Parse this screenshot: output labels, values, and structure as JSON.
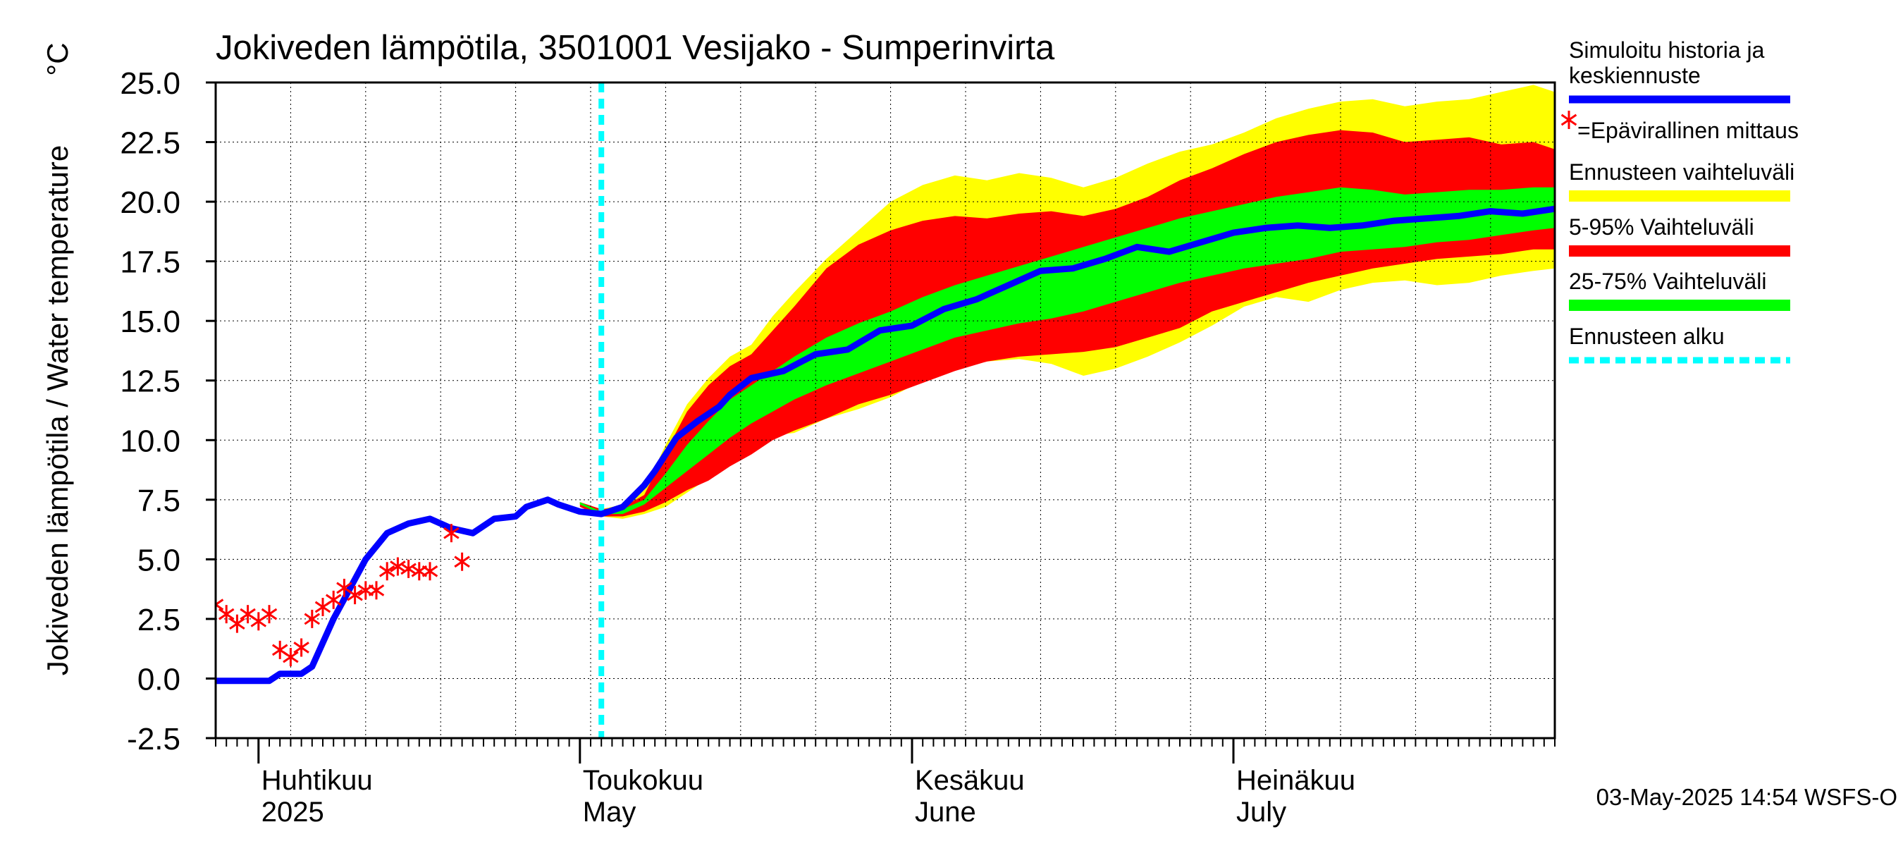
{
  "chart_data": {
    "type": "area",
    "title": "Jokiveden lämpötila, 3501001 Vesijako - Sumperinvirta",
    "ylabel": "Jokiveden lämpötila / Water temperature",
    "yunit": "°C",
    "ylim": [
      -2.5,
      25.0
    ],
    "yticks": [
      "25.0",
      "22.5",
      "20.0",
      "17.5",
      "15.0",
      "12.5",
      "10.0",
      "7.5",
      "5.0",
      "2.5",
      "0.0",
      "-2.5"
    ],
    "xlim": [
      "2025-03-28",
      "2025-07-31"
    ],
    "month_labels": [
      {
        "date": "2025-04-01",
        "fi": "Huhtikuu",
        "en": "2025"
      },
      {
        "date": "2025-05-01",
        "fi": "Toukokuu",
        "en": "May"
      },
      {
        "date": "2025-06-01",
        "fi": "Kesäkuu",
        "en": "June"
      },
      {
        "date": "2025-07-01",
        "fi": "Heinäkuu",
        "en": "July"
      }
    ],
    "forecast_start": "2025-05-03",
    "timestamp": "03-May-2025 14:54 WSFS-O",
    "legend_placement": "right",
    "legend": [
      {
        "label": "Simuloitu historia ja keskiennuste",
        "color": "#0000ff",
        "kind": "line"
      },
      {
        "label": "=Epävirallinen mittaus",
        "color": "#ff0000",
        "kind": "star"
      },
      {
        "label": "Ennusteen vaihteluväli",
        "color": "#ffff00",
        "kind": "band"
      },
      {
        "label": "5-95% Vaihteluväli",
        "color": "#ff0000",
        "kind": "band"
      },
      {
        "label": "25-75% Vaihteluväli",
        "color": "#00ff00",
        "kind": "band"
      },
      {
        "label": "Ennusteen alku",
        "color": "#00ffff",
        "kind": "dash"
      }
    ],
    "colors": {
      "mean": "#0000ff",
      "obs": "#ff0000",
      "range_full": "#ffff00",
      "range_5_95": "#ff0000",
      "range_25_75": "#00ff00",
      "forecast_start": "#00ffff",
      "grid": "#000000"
    },
    "series": [
      {
        "name": "Simuloitu historia ja keskiennuste",
        "x": [
          "2025-03-28",
          "2025-04-02",
          "2025-04-03",
          "2025-04-05",
          "2025-04-06",
          "2025-04-08",
          "2025-04-11",
          "2025-04-13",
          "2025-04-15",
          "2025-04-17",
          "2025-04-19",
          "2025-04-21",
          "2025-04-23",
          "2025-04-25",
          "2025-04-26",
          "2025-04-28",
          "2025-04-29",
          "2025-05-01",
          "2025-05-03",
          "2025-05-05",
          "2025-05-07",
          "2025-05-08",
          "2025-05-09",
          "2025-05-10",
          "2025-05-12",
          "2025-05-14",
          "2025-05-15",
          "2025-05-17",
          "2025-05-20",
          "2025-05-23",
          "2025-05-26",
          "2025-05-29",
          "2025-06-01",
          "2025-06-04",
          "2025-06-07",
          "2025-06-10",
          "2025-06-13",
          "2025-06-16",
          "2025-06-19",
          "2025-06-22",
          "2025-06-25",
          "2025-06-28",
          "2025-07-01",
          "2025-07-04",
          "2025-07-07",
          "2025-07-10",
          "2025-07-13",
          "2025-07-16",
          "2025-07-19",
          "2025-07-22",
          "2025-07-25",
          "2025-07-28",
          "2025-07-31"
        ],
        "values": [
          -0.1,
          -0.1,
          0.2,
          0.2,
          0.5,
          2.5,
          5.0,
          6.1,
          6.5,
          6.7,
          6.3,
          6.1,
          6.7,
          6.8,
          7.2,
          7.5,
          7.3,
          7.0,
          6.9,
          7.2,
          8.1,
          8.7,
          9.4,
          10.1,
          10.8,
          11.4,
          11.9,
          12.6,
          12.9,
          13.6,
          13.8,
          14.6,
          14.8,
          15.5,
          15.9,
          16.5,
          17.1,
          17.2,
          17.6,
          18.1,
          17.9,
          18.3,
          18.7,
          18.9,
          19.0,
          18.9,
          19.0,
          19.2,
          19.3,
          19.4,
          19.6,
          19.5,
          19.7
        ]
      },
      {
        "name": "=Epävirallinen mittaus",
        "x": [
          "2025-03-28",
          "2025-03-29",
          "2025-03-30",
          "2025-03-31",
          "2025-04-01",
          "2025-04-02",
          "2025-04-03",
          "2025-04-04",
          "2025-04-05",
          "2025-04-06",
          "2025-04-07",
          "2025-04-08",
          "2025-04-09",
          "2025-04-10",
          "2025-04-11",
          "2025-04-12",
          "2025-04-13",
          "2025-04-14",
          "2025-04-15",
          "2025-04-16",
          "2025-04-17",
          "2025-04-19",
          "2025-04-20"
        ],
        "values": [
          3.1,
          2.7,
          2.3,
          2.7,
          2.4,
          2.7,
          1.2,
          0.9,
          1.3,
          2.5,
          3.0,
          3.3,
          3.8,
          3.5,
          3.7,
          3.7,
          4.5,
          4.7,
          4.6,
          4.5,
          4.5,
          6.1,
          4.9
        ]
      }
    ],
    "bands": [
      {
        "name": "Ennusteen vaihteluväli",
        "x": [
          "2025-05-01",
          "2025-05-03",
          "2025-05-05",
          "2025-05-07",
          "2025-05-09",
          "2025-05-11",
          "2025-05-13",
          "2025-05-15",
          "2025-05-17",
          "2025-05-19",
          "2025-05-21",
          "2025-05-24",
          "2025-05-27",
          "2025-05-30",
          "2025-06-02",
          "2025-06-05",
          "2025-06-08",
          "2025-06-11",
          "2025-06-14",
          "2025-06-17",
          "2025-06-20",
          "2025-06-23",
          "2025-06-26",
          "2025-06-29",
          "2025-07-02",
          "2025-07-05",
          "2025-07-08",
          "2025-07-11",
          "2025-07-14",
          "2025-07-17",
          "2025-07-20",
          "2025-07-23",
          "2025-07-26",
          "2025-07-29",
          "2025-07-31"
        ],
        "low": [
          7.3,
          6.8,
          6.7,
          6.9,
          7.2,
          7.8,
          8.4,
          9.1,
          9.8,
          10.2,
          10.3,
          10.9,
          11.3,
          11.8,
          12.5,
          13.0,
          13.3,
          13.4,
          13.2,
          12.7,
          13.0,
          13.5,
          14.1,
          14.8,
          15.6,
          16.0,
          15.8,
          16.3,
          16.6,
          16.7,
          16.5,
          16.6,
          16.9,
          17.1,
          17.2
        ],
        "high": [
          7.4,
          7.1,
          7.3,
          7.9,
          9.8,
          11.5,
          12.6,
          13.5,
          14.0,
          15.2,
          16.2,
          17.6,
          18.8,
          20.0,
          20.7,
          21.1,
          20.9,
          21.2,
          21.0,
          20.6,
          21.0,
          21.6,
          22.1,
          22.4,
          22.9,
          23.5,
          23.9,
          24.2,
          24.3,
          24.0,
          24.2,
          24.3,
          24.6,
          24.9,
          24.6
        ]
      },
      {
        "name": "5-95% Vaihteluväli",
        "x": [
          "2025-05-01",
          "2025-05-03",
          "2025-05-05",
          "2025-05-07",
          "2025-05-09",
          "2025-05-11",
          "2025-05-13",
          "2025-05-15",
          "2025-05-17",
          "2025-05-19",
          "2025-05-21",
          "2025-05-24",
          "2025-05-27",
          "2025-05-30",
          "2025-06-02",
          "2025-06-05",
          "2025-06-08",
          "2025-06-11",
          "2025-06-14",
          "2025-06-17",
          "2025-06-20",
          "2025-06-23",
          "2025-06-26",
          "2025-06-29",
          "2025-07-02",
          "2025-07-05",
          "2025-07-08",
          "2025-07-11",
          "2025-07-14",
          "2025-07-17",
          "2025-07-20",
          "2025-07-23",
          "2025-07-26",
          "2025-07-29",
          "2025-07-31"
        ],
        "low": [
          7.2,
          6.8,
          6.8,
          7.0,
          7.4,
          7.9,
          8.3,
          8.9,
          9.4,
          10.0,
          10.4,
          10.9,
          11.5,
          11.9,
          12.4,
          12.9,
          13.3,
          13.5,
          13.6,
          13.7,
          13.9,
          14.3,
          14.7,
          15.4,
          15.8,
          16.2,
          16.6,
          16.9,
          17.2,
          17.4,
          17.6,
          17.7,
          17.8,
          18.0,
          18.0
        ],
        "high": [
          7.4,
          7.1,
          7.2,
          7.7,
          9.5,
          11.2,
          12.3,
          13.1,
          13.6,
          14.6,
          15.6,
          17.2,
          18.2,
          18.8,
          19.2,
          19.4,
          19.3,
          19.5,
          19.6,
          19.4,
          19.7,
          20.2,
          20.9,
          21.4,
          22.0,
          22.5,
          22.8,
          23.0,
          22.9,
          22.5,
          22.6,
          22.7,
          22.4,
          22.5,
          22.2
        ]
      },
      {
        "name": "25-75% Vaihteluväli",
        "x": [
          "2025-05-01",
          "2025-05-03",
          "2025-05-05",
          "2025-05-07",
          "2025-05-09",
          "2025-05-11",
          "2025-05-13",
          "2025-05-15",
          "2025-05-17",
          "2025-05-19",
          "2025-05-21",
          "2025-05-24",
          "2025-05-27",
          "2025-05-30",
          "2025-06-02",
          "2025-06-05",
          "2025-06-08",
          "2025-06-11",
          "2025-06-14",
          "2025-06-17",
          "2025-06-20",
          "2025-06-23",
          "2025-06-26",
          "2025-06-29",
          "2025-07-02",
          "2025-07-05",
          "2025-07-08",
          "2025-07-11",
          "2025-07-14",
          "2025-07-17",
          "2025-07-20",
          "2025-07-23",
          "2025-07-26",
          "2025-07-29",
          "2025-07-31"
        ],
        "low": [
          7.3,
          6.9,
          6.9,
          7.3,
          8.0,
          8.7,
          9.4,
          10.1,
          10.7,
          11.2,
          11.7,
          12.3,
          12.8,
          13.3,
          13.8,
          14.3,
          14.6,
          14.9,
          15.1,
          15.4,
          15.8,
          16.2,
          16.6,
          16.9,
          17.2,
          17.4,
          17.6,
          17.9,
          18.0,
          18.1,
          18.3,
          18.4,
          18.6,
          18.8,
          18.9
        ],
        "high": [
          7.4,
          7.0,
          7.1,
          7.5,
          8.6,
          9.8,
          10.8,
          11.7,
          12.3,
          12.9,
          13.5,
          14.3,
          14.9,
          15.4,
          16.0,
          16.5,
          16.9,
          17.3,
          17.7,
          18.1,
          18.5,
          18.9,
          19.3,
          19.6,
          19.9,
          20.2,
          20.4,
          20.6,
          20.5,
          20.3,
          20.4,
          20.5,
          20.5,
          20.6,
          20.6
        ]
      }
    ]
  }
}
